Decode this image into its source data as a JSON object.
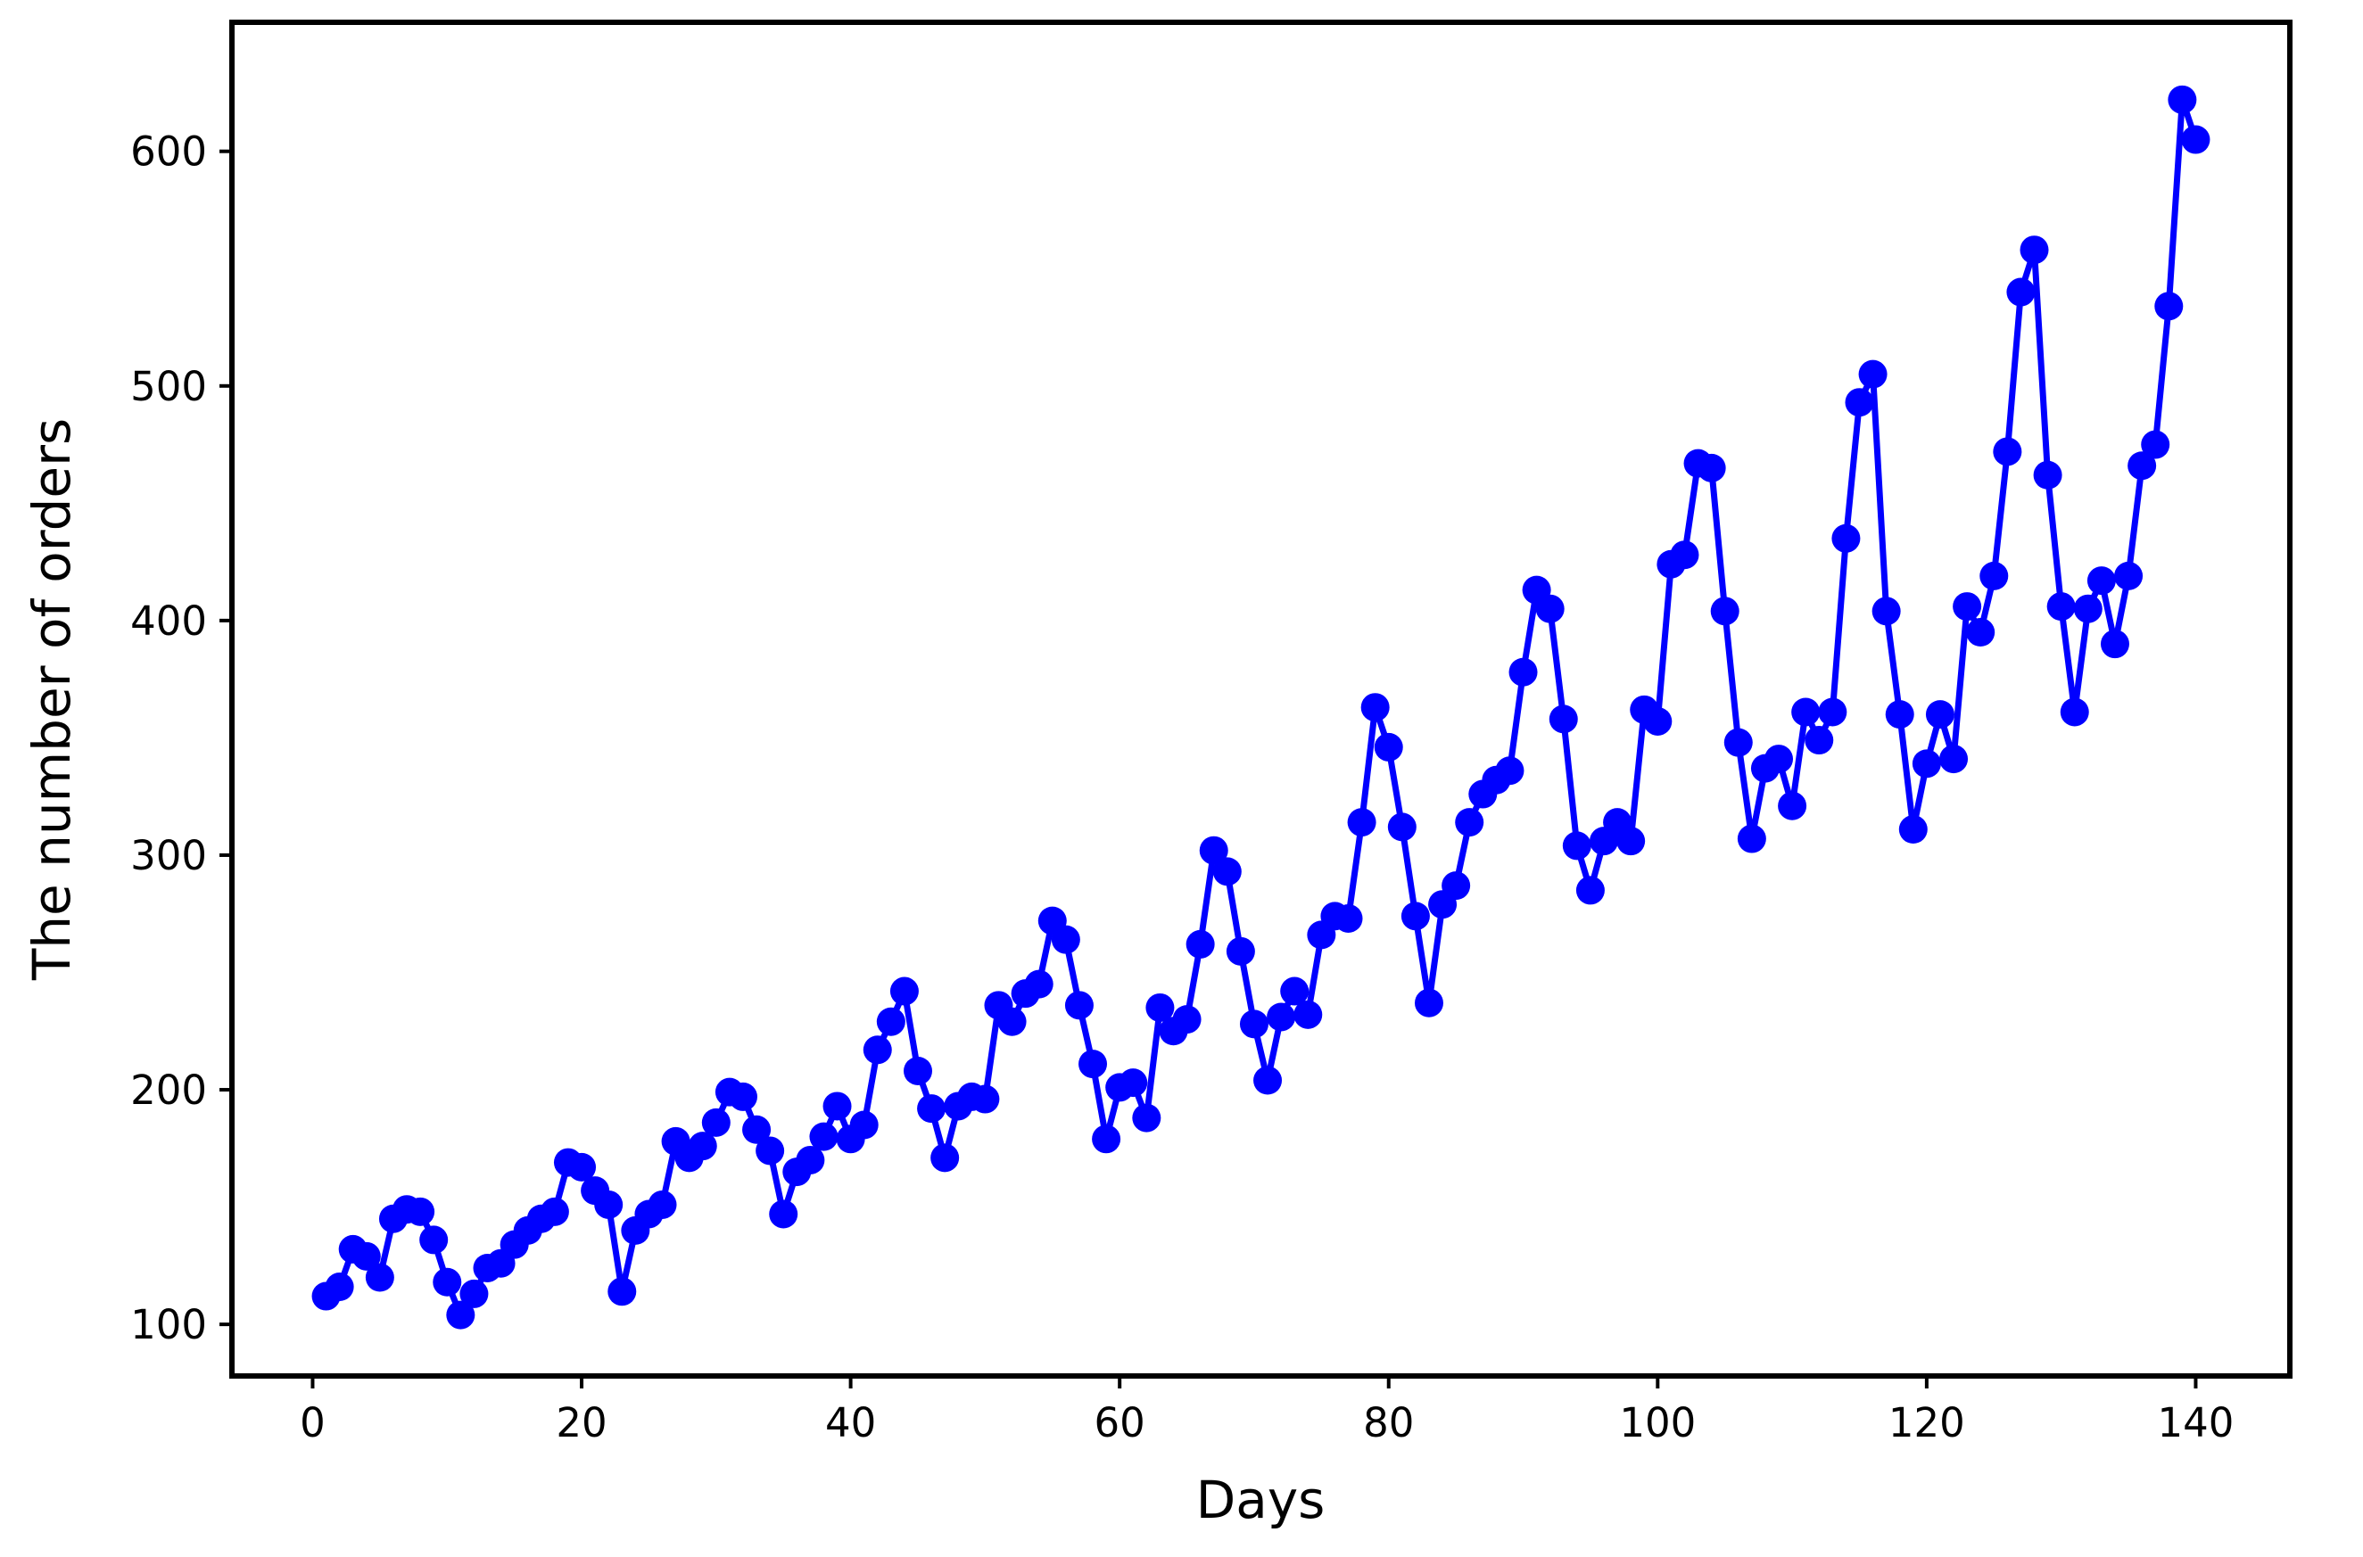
{
  "chart_data": {
    "type": "line",
    "title": "",
    "xlabel": "Days",
    "ylabel": "The number of orders",
    "legend": null,
    "grid": false,
    "line_color": "#0000ff",
    "marker": "circle",
    "background_color": "#ffffff",
    "frame_color": "#000000",
    "x_ticks": [
      0,
      20,
      40,
      60,
      80,
      100,
      120,
      140
    ],
    "y_ticks": [
      100,
      200,
      300,
      400,
      500,
      600
    ],
    "xlim": [
      -6,
      147
    ],
    "ylim": [
      78,
      655
    ],
    "x": [
      1,
      2,
      3,
      4,
      5,
      6,
      7,
      8,
      9,
      10,
      11,
      12,
      13,
      14,
      15,
      16,
      17,
      18,
      19,
      20,
      21,
      22,
      23,
      24,
      25,
      26,
      27,
      28,
      29,
      30,
      31,
      32,
      33,
      34,
      35,
      36,
      37,
      38,
      39,
      40,
      41,
      42,
      43,
      44,
      45,
      46,
      47,
      48,
      49,
      50,
      51,
      52,
      53,
      54,
      55,
      56,
      57,
      58,
      59,
      60,
      61,
      62,
      63,
      64,
      65,
      66,
      67,
      68,
      69,
      70,
      71,
      72,
      73,
      74,
      75,
      76,
      77,
      78,
      79,
      80,
      81,
      82,
      83,
      84,
      85,
      86,
      87,
      88,
      89,
      90,
      91,
      92,
      93,
      94,
      95,
      96,
      97,
      98,
      99,
      100,
      101,
      102,
      103,
      104,
      105,
      106,
      107,
      108,
      109,
      110,
      111,
      112,
      113,
      114,
      115,
      116,
      117,
      118,
      119,
      120,
      121,
      122,
      123,
      124,
      125,
      126,
      127,
      128,
      129,
      130,
      131,
      132,
      133,
      134,
      135,
      136,
      137,
      138,
      139,
      140
    ],
    "values": [
      112,
      116,
      132,
      129,
      120,
      145,
      149,
      148,
      136,
      118,
      104,
      113,
      124,
      126,
      134,
      140,
      145,
      148,
      169,
      167,
      157,
      151,
      114,
      140,
      147,
      151,
      178,
      171,
      176,
      186,
      199,
      197,
      183,
      174,
      147,
      165,
      170,
      180,
      193,
      179,
      185,
      217,
      229,
      242,
      208,
      192,
      171,
      193,
      197,
      196,
      236,
      229,
      241,
      245,
      272,
      264,
      236,
      211,
      179,
      201,
      203,
      188,
      235,
      225,
      230,
      262,
      302,
      293,
      259,
      228,
      204,
      231,
      242,
      232,
      266,
      274,
      273,
      314,
      363,
      346,
      312,
      274,
      237,
      279,
      287,
      314,
      326,
      332,
      336,
      378,
      413,
      405,
      358,
      304,
      285,
      306,
      314,
      306,
      362,
      357,
      424,
      428,
      467,
      465,
      404,
      348,
      307,
      337,
      341,
      321,
      361,
      349,
      361,
      435,
      493,
      505,
      404,
      360,
      311,
      339,
      360,
      341,
      406,
      395,
      419,
      472,
      540,
      558,
      462,
      406,
      361,
      405,
      417,
      390,
      419,
      466,
      475,
      534,
      622,
      605
    ]
  }
}
